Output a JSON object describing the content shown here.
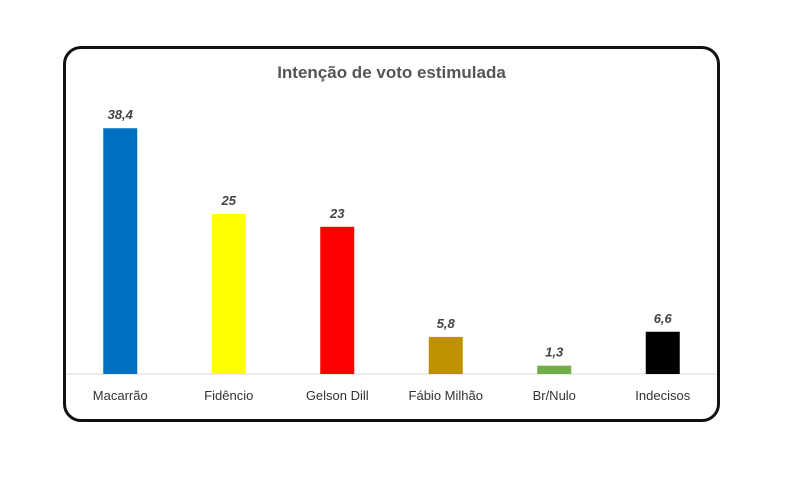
{
  "chart_data": {
    "type": "bar",
    "title": "Intenção de voto estimulada",
    "xlabel": "",
    "ylabel": "",
    "categories": [
      "Macarrão",
      "Fidêncio",
      "Gelson Dill",
      "Fábio Milhão",
      "Br/Nulo",
      "Indecisos"
    ],
    "values": [
      38.4,
      25,
      23,
      5.8,
      1.3,
      6.6
    ],
    "value_labels": [
      "38,4",
      "25",
      "23",
      "5,8",
      "1,3",
      "6,6"
    ],
    "colors": [
      "#0070C0",
      "#FFFF00",
      "#FF0000",
      "#BF9000",
      "#70AD47",
      "#000000"
    ],
    "ylim": [
      0,
      40
    ],
    "grid": false,
    "legend": "none"
  }
}
